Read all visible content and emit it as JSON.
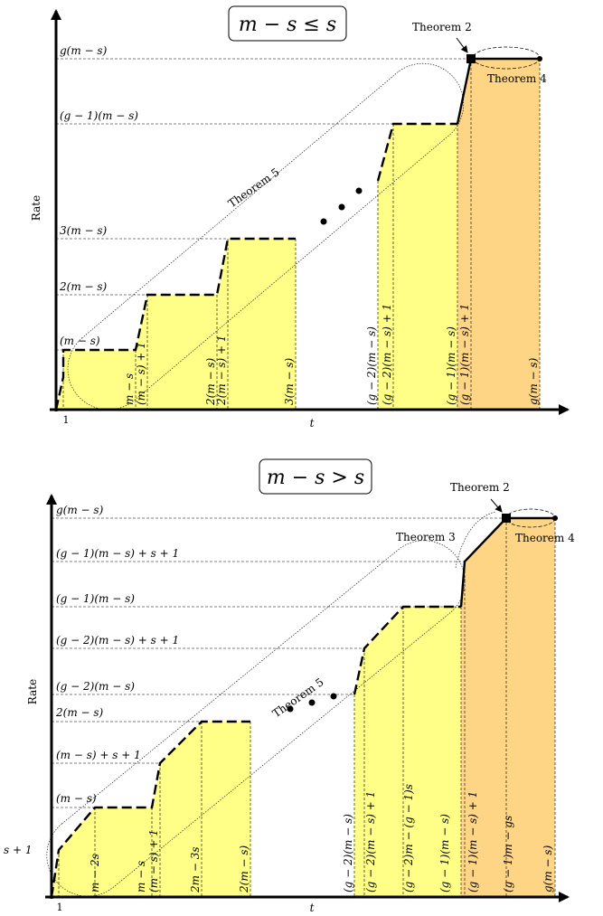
{
  "top": {
    "condition": "m − s ≤ s",
    "y_axis_label": "Rate",
    "x_axis_label": "t",
    "x_origin_label": "1",
    "theorems": {
      "t2": "Theorem 2",
      "t4": "Theorem 4",
      "t5": "Theorem 5"
    },
    "y_ticks": [
      "g(m − s)",
      "(g − 1)(m − s)",
      "3(m − s)",
      "2(m − s)",
      "(m − s)"
    ],
    "x_ticks": [
      "m − s",
      "(m − s) + 1",
      "2(m − s)",
      "2(m − s) + 1",
      "3(m − s)",
      "(g − 2)(m − s)",
      "(g − 2)(m − s) + 1",
      "(g − 1)(m − s)",
      "(g − 1)(m − s) + 1",
      "g(m − s)"
    ]
  },
  "bottom": {
    "condition": "m − s > s",
    "y_axis_label": "Rate",
    "x_axis_label": "t",
    "x_origin_label": "1",
    "theorems": {
      "t2": "Theorem 2",
      "t3": "Theorem 3",
      "t4": "Theorem 4",
      "t5": "Theorem 5"
    },
    "y_ticks": [
      "g(m − s)",
      "(g − 1)(m − s) + s + 1",
      "(g − 1)(m − s)",
      "(g − 2)(m − s) + s + 1",
      "(g − 2)(m − s)",
      "2(m − s)",
      "(m − s) + s + 1",
      "(m − s)",
      "s + 1"
    ],
    "x_ticks": [
      "m − 2s",
      "m − s",
      "(m − s) + 1",
      "2m − 3s",
      "2(m − s)",
      "(g − 2)(m − s)",
      "(g − 2)(m − s) + 1",
      "(g − 2)m − (g − 1)s",
      "(g − 1)(m − s)",
      "(g − 1)(m − s) + 1",
      "(g − 1)m − gs",
      "g(m − s)"
    ]
  },
  "colors": {
    "fill_yellow": "#ffff88",
    "fill_orange": "#fdd585",
    "axis": "#000000"
  }
}
